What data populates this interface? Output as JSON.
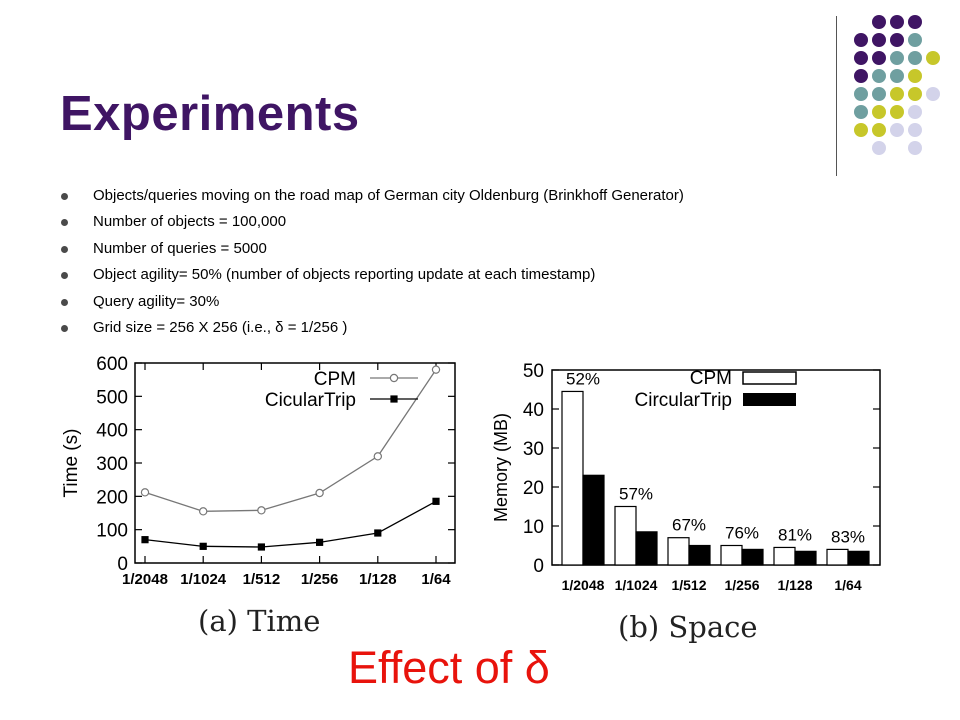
{
  "slide": {
    "title": "Experiments",
    "bullets": [
      "Objects/queries moving on the road map of German city Oldenburg (Brinkhoff Generator)",
      "Number of objects = 100,000",
      "Number of queries = 5000",
      "Object agility= 50%  (number of objects reporting update at each timestamp)",
      "Query agility= 30%",
      "Grid size = 256 X 256  (i.e.,  δ = 1/256 )"
    ],
    "footer": "Effect of δ",
    "colors": {
      "title": "#3f1564",
      "footer": "#e8130c",
      "dot_purple": "#3f1564",
      "dot_teal": "#6f9fa0",
      "dot_lime": "#c7c72a",
      "dot_lavender": "#d3d3ea"
    }
  },
  "chart_data": [
    {
      "type": "line",
      "caption": "(a)  Time",
      "categories": [
        "1/2048",
        "1/1024",
        "1/512",
        "1/256",
        "1/128",
        "1/64"
      ],
      "series": [
        {
          "name": "CPM",
          "values": [
            212,
            155,
            158,
            210,
            320,
            580
          ],
          "marker": "open-circle"
        },
        {
          "name": "CicularTrip",
          "values": [
            70,
            50,
            48,
            62,
            90,
            185
          ],
          "marker": "filled-square"
        }
      ],
      "ylabel": "Time (s)",
      "ylim": [
        0,
        600
      ],
      "yticks": [
        0,
        100,
        200,
        300,
        400,
        500,
        600
      ],
      "legend": "top-right",
      "grid": false
    },
    {
      "type": "bar",
      "caption": "(b)  Space",
      "categories": [
        "1/2048",
        "1/1024",
        "1/512",
        "1/256",
        "1/128",
        "1/64"
      ],
      "series": [
        {
          "name": "CPM",
          "values": [
            44.5,
            15,
            7,
            5,
            4.5,
            4
          ],
          "fill": "white"
        },
        {
          "name": "CircularTrip",
          "values": [
            23,
            8.5,
            5,
            4,
            3.5,
            3.5
          ],
          "fill": "black"
        }
      ],
      "annotations": [
        "52%",
        "57%",
        "67%",
        "76%",
        "81%",
        "83%"
      ],
      "ylabel": "Memory (MB)",
      "ylim": [
        0,
        50
      ],
      "yticks": [
        0,
        10,
        20,
        30,
        40,
        50
      ],
      "legend": "top-right",
      "grid": false
    }
  ]
}
